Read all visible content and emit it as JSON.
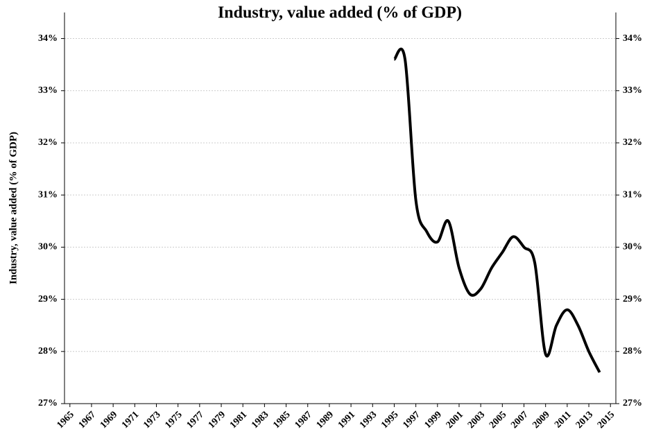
{
  "chart_data": {
    "type": "line",
    "title": "Industry, value added (% of GDP)",
    "y_label": "Industry, value added (% of GDP)",
    "x": [
      1995,
      1996,
      1997,
      1998,
      1999,
      2000,
      2001,
      2002,
      2003,
      2004,
      2005,
      2006,
      2007,
      2008,
      2009,
      2010,
      2011,
      2012,
      2013,
      2014
    ],
    "series": [
      {
        "name": "Industry, value added (% of GDP)",
        "color": "#000000",
        "values": [
          33.6,
          33.6,
          30.9,
          30.3,
          30.1,
          30.5,
          29.6,
          29.1,
          29.2,
          29.6,
          29.9,
          30.2,
          30.0,
          29.7,
          27.95,
          28.5,
          28.8,
          28.5,
          28.0,
          27.6
        ]
      }
    ],
    "xlim": [
      1964.5,
      2015.5
    ],
    "xticks": [
      1965,
      1967,
      1969,
      1971,
      1973,
      1975,
      1977,
      1979,
      1981,
      1983,
      1985,
      1987,
      1989,
      1991,
      1993,
      1995,
      1997,
      1999,
      2001,
      2003,
      2005,
      2007,
      2009,
      2011,
      2013,
      2015
    ],
    "ylim": [
      27,
      34.3
    ],
    "yticks": [
      {
        "value": 27,
        "label": "27%"
      },
      {
        "value": 28,
        "label": "28%"
      },
      {
        "value": 29,
        "label": "29%"
      },
      {
        "value": 30,
        "label": "30%"
      },
      {
        "value": 31,
        "label": "31%"
      },
      {
        "value": 32,
        "label": "32%"
      },
      {
        "value": 33,
        "label": "33%"
      },
      {
        "value": 34,
        "label": "34%"
      }
    ],
    "grid": true
  }
}
